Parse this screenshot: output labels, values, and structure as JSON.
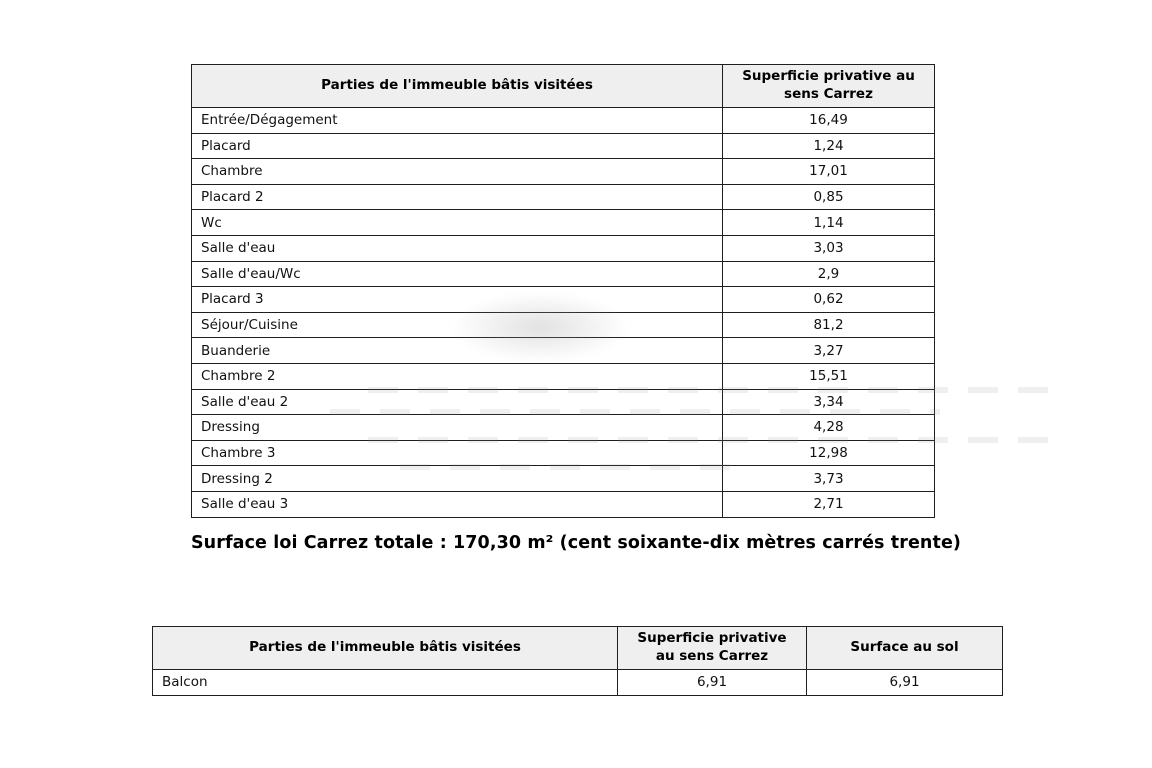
{
  "colors": {
    "header_bg": "#efefef",
    "border": "#1f1f1f",
    "text": "#111111"
  },
  "table1": {
    "headers": [
      "Parties de l'immeuble bâtis visitées",
      "Superficie privative au sens Carrez"
    ],
    "rows": [
      [
        "Entrée/Dégagement",
        "16,49"
      ],
      [
        "Placard",
        "1,24"
      ],
      [
        "Chambre",
        "17,01"
      ],
      [
        "Placard 2",
        "0,85"
      ],
      [
        "Wc",
        "1,14"
      ],
      [
        "Salle d'eau",
        "3,03"
      ],
      [
        "Salle d'eau/Wc",
        "2,9"
      ],
      [
        "Placard 3",
        "0,62"
      ],
      [
        "Séjour/Cuisine",
        "81,2"
      ],
      [
        "Buanderie",
        "3,27"
      ],
      [
        "Chambre 2",
        "15,51"
      ],
      [
        "Salle d'eau 2",
        "3,34"
      ],
      [
        "Dressing",
        "4,28"
      ],
      [
        "Chambre 3",
        "12,98"
      ],
      [
        "Dressing 2",
        "3,73"
      ],
      [
        "Salle d'eau 3",
        "2,71"
      ]
    ]
  },
  "summary": {
    "text": "Surface loi Carrez totale : 170,30 m² (cent soixante-dix mètres carrés trente)"
  },
  "table2": {
    "headers": [
      "Parties de l'immeuble bâtis visitées",
      "Superficie privative au sens Carrez",
      "Surface au sol"
    ],
    "rows": [
      [
        "Balcon",
        "6,91",
        "6,91"
      ]
    ]
  }
}
